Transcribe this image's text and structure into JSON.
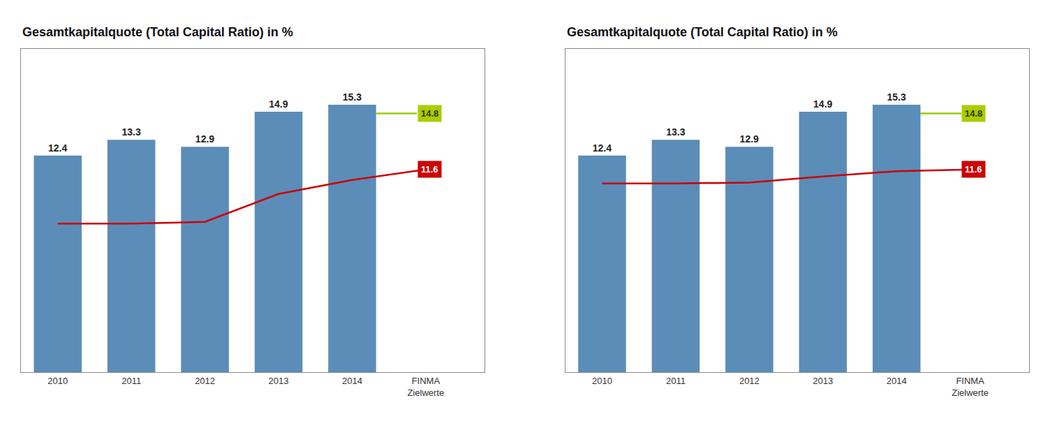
{
  "chart_data": [
    {
      "type": "bar",
      "title": "Gesamtkapitalquote (Total Capital Ratio) in %",
      "categories": [
        "2010",
        "2011",
        "2012",
        "2013",
        "2014",
        "FINMA\nZielwerte"
      ],
      "series": [
        {
          "type": "bar",
          "color": "#5B8DB8",
          "values": [
            12.4,
            13.3,
            12.9,
            14.9,
            15.3,
            null
          ],
          "data_labels": true
        },
        {
          "type": "line",
          "color": "#CC0000",
          "values": [
            8.5,
            8.5,
            8.6,
            10.2,
            11.0,
            11.6
          ]
        },
        {
          "type": "target",
          "color": "#99CC00",
          "values": [
            null,
            null,
            null,
            null,
            14.8,
            null
          ]
        }
      ],
      "annotations": [
        {
          "text": "11.6",
          "y": 11.6,
          "color": "#CC0000"
        },
        {
          "text": "14.8",
          "y": 14.8,
          "color": "#AACC00"
        }
      ],
      "ylim": [
        0,
        18.5
      ],
      "yticks": [],
      "grid": false,
      "tick_labels": "x"
    },
    {
      "type": "bar",
      "title": "Gesamtkapitalquote (Total Capital Ratio) in %",
      "categories": [
        "2010",
        "2011",
        "2012",
        "2013",
        "2014",
        "FINMA\nZielwerte"
      ],
      "series": [
        {
          "type": "bar",
          "color": "#5B8DB8",
          "values": [
            12.4,
            13.3,
            12.9,
            14.9,
            15.3,
            null
          ],
          "data_labels": true
        },
        {
          "type": "line",
          "color": "#CC0000",
          "values": [
            10.8,
            10.8,
            10.85,
            11.2,
            11.5,
            11.6
          ]
        },
        {
          "type": "target",
          "color": "#99CC00",
          "values": [
            null,
            null,
            null,
            null,
            14.8,
            null
          ]
        }
      ],
      "annotations": [
        {
          "text": "11.6",
          "y": 11.6,
          "color": "#CC0000"
        },
        {
          "text": "14.8",
          "y": 14.8,
          "color": "#AACC00"
        }
      ],
      "ylim": [
        0,
        18.5
      ],
      "yticks": [],
      "grid": false,
      "tick_labels": "x"
    }
  ]
}
